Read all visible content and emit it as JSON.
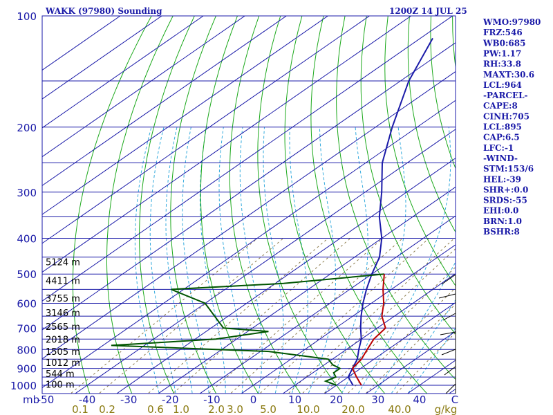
{
  "chart_data": {
    "type": "line",
    "title": "WAKK (97980) Sounding",
    "time": "1200Z 14 JUL 25",
    "pressure_levels": [
      100,
      200,
      300,
      400,
      500,
      600,
      700,
      800,
      900,
      1000
    ],
    "pressure_unit": "mb",
    "temperature_ticks": [
      -50,
      -40,
      -30,
      -20,
      -10,
      0,
      10,
      20,
      30,
      40
    ],
    "temperature_last_label": "C",
    "mixing_ratio_ticks": [
      "0.1",
      "0.2",
      "0.6",
      "1.0",
      "2.0",
      "3.0",
      "5.0",
      "10.0",
      "20.0",
      "40.0"
    ],
    "mixing_ratio_unit": "g/kg",
    "height_labels": [
      {
        "p": 543,
        "text": "5124 m"
      },
      {
        "p": 610,
        "text": "4411 m"
      },
      {
        "p": 680,
        "text": "3755 m"
      },
      {
        "p": 745,
        "text": "3146 m"
      },
      {
        "p": 812,
        "text": "2565 m"
      },
      {
        "p": 880,
        "text": "2018 m"
      },
      {
        "p": 948,
        "text": "1505 m"
      },
      {
        "p": 1017,
        "text": "1012 m"
      },
      {
        "p": 1090,
        "text": "544 m"
      },
      {
        "p": 1165,
        "text": "100 m"
      }
    ],
    "series": [],
    "temperature_profile": [
      {
        "p": 1000,
        "t": 24
      },
      {
        "p": 950,
        "t": 20
      },
      {
        "p": 900,
        "t": 18
      },
      {
        "p": 850,
        "t": 16
      },
      {
        "p": 800,
        "t": 13
      },
      {
        "p": 750,
        "t": 10
      },
      {
        "p": 700,
        "t": 6
      },
      {
        "p": 650,
        "t": 2
      },
      {
        "p": 600,
        "t": -2
      },
      {
        "p": 550,
        "t": -6
      },
      {
        "p": 500,
        "t": -10
      },
      {
        "p": 450,
        "t": -14
      },
      {
        "p": 400,
        "t": -20
      },
      {
        "p": 350,
        "t": -28
      },
      {
        "p": 300,
        "t": -36
      },
      {
        "p": 250,
        "t": -46
      },
      {
        "p": 200,
        "t": -56
      },
      {
        "p": 150,
        "t": -68
      },
      {
        "p": 115,
        "t": -77
      }
    ],
    "dewpoint_profile": [
      {
        "p": 1000,
        "t": 20
      },
      {
        "p": 975,
        "t": 16
      },
      {
        "p": 950,
        "t": 17
      },
      {
        "p": 925,
        "t": 15
      },
      {
        "p": 900,
        "t": 15
      },
      {
        "p": 880,
        "t": 12
      },
      {
        "p": 850,
        "t": 9
      },
      {
        "p": 810,
        "t": -8
      },
      {
        "p": 780,
        "t": -48
      },
      {
        "p": 750,
        "t": -25
      },
      {
        "p": 715,
        "t": -15
      },
      {
        "p": 700,
        "t": -27
      },
      {
        "p": 600,
        "t": -40
      },
      {
        "p": 550,
        "t": -53
      },
      {
        "p": 530,
        "t": -28
      },
      {
        "p": 500,
        "t": -7
      }
    ],
    "parcel_profile": [
      {
        "p": 1000,
        "t": 26
      },
      {
        "p": 950,
        "t": 22
      },
      {
        "p": 900,
        "t": 18
      },
      {
        "p": 850,
        "t": 17
      },
      {
        "p": 800,
        "t": 15
      },
      {
        "p": 750,
        "t": 13
      },
      {
        "p": 700,
        "t": 12
      },
      {
        "p": 650,
        "t": 7
      },
      {
        "p": 600,
        "t": 3
      },
      {
        "p": 550,
        "t": -2
      },
      {
        "p": 500,
        "t": -7
      }
    ],
    "info": [
      "WMO:97980",
      "FRZ:546",
      "WB0:685",
      "PW:1.17",
      "RH:33.8",
      "MAXT:30.6",
      "LCL:964",
      "-PARCEL-",
      "CAPE:8",
      "CINH:705",
      "LCL:895",
      "CAP:6.5",
      "LFC:-1",
      "-WIND-",
      "STM:153/6",
      "HEL:-39",
      "SHR+:0.0",
      "SRDS:-55",
      "EHI:0.0",
      "BRN:1.0",
      "BSHR:8"
    ],
    "colors": {
      "frame": "#1a1aa8",
      "isobar": "#1a1aa8",
      "isotherm": "#1a1aa8",
      "dry_adiabat": "#1aa81a",
      "moist_adiabat": "#33aadd",
      "mixing_ratio": "#8a7a4a",
      "temperature": "#1a1aa8",
      "dewpoint": "#005500",
      "parcel": "#bb0000"
    }
  }
}
